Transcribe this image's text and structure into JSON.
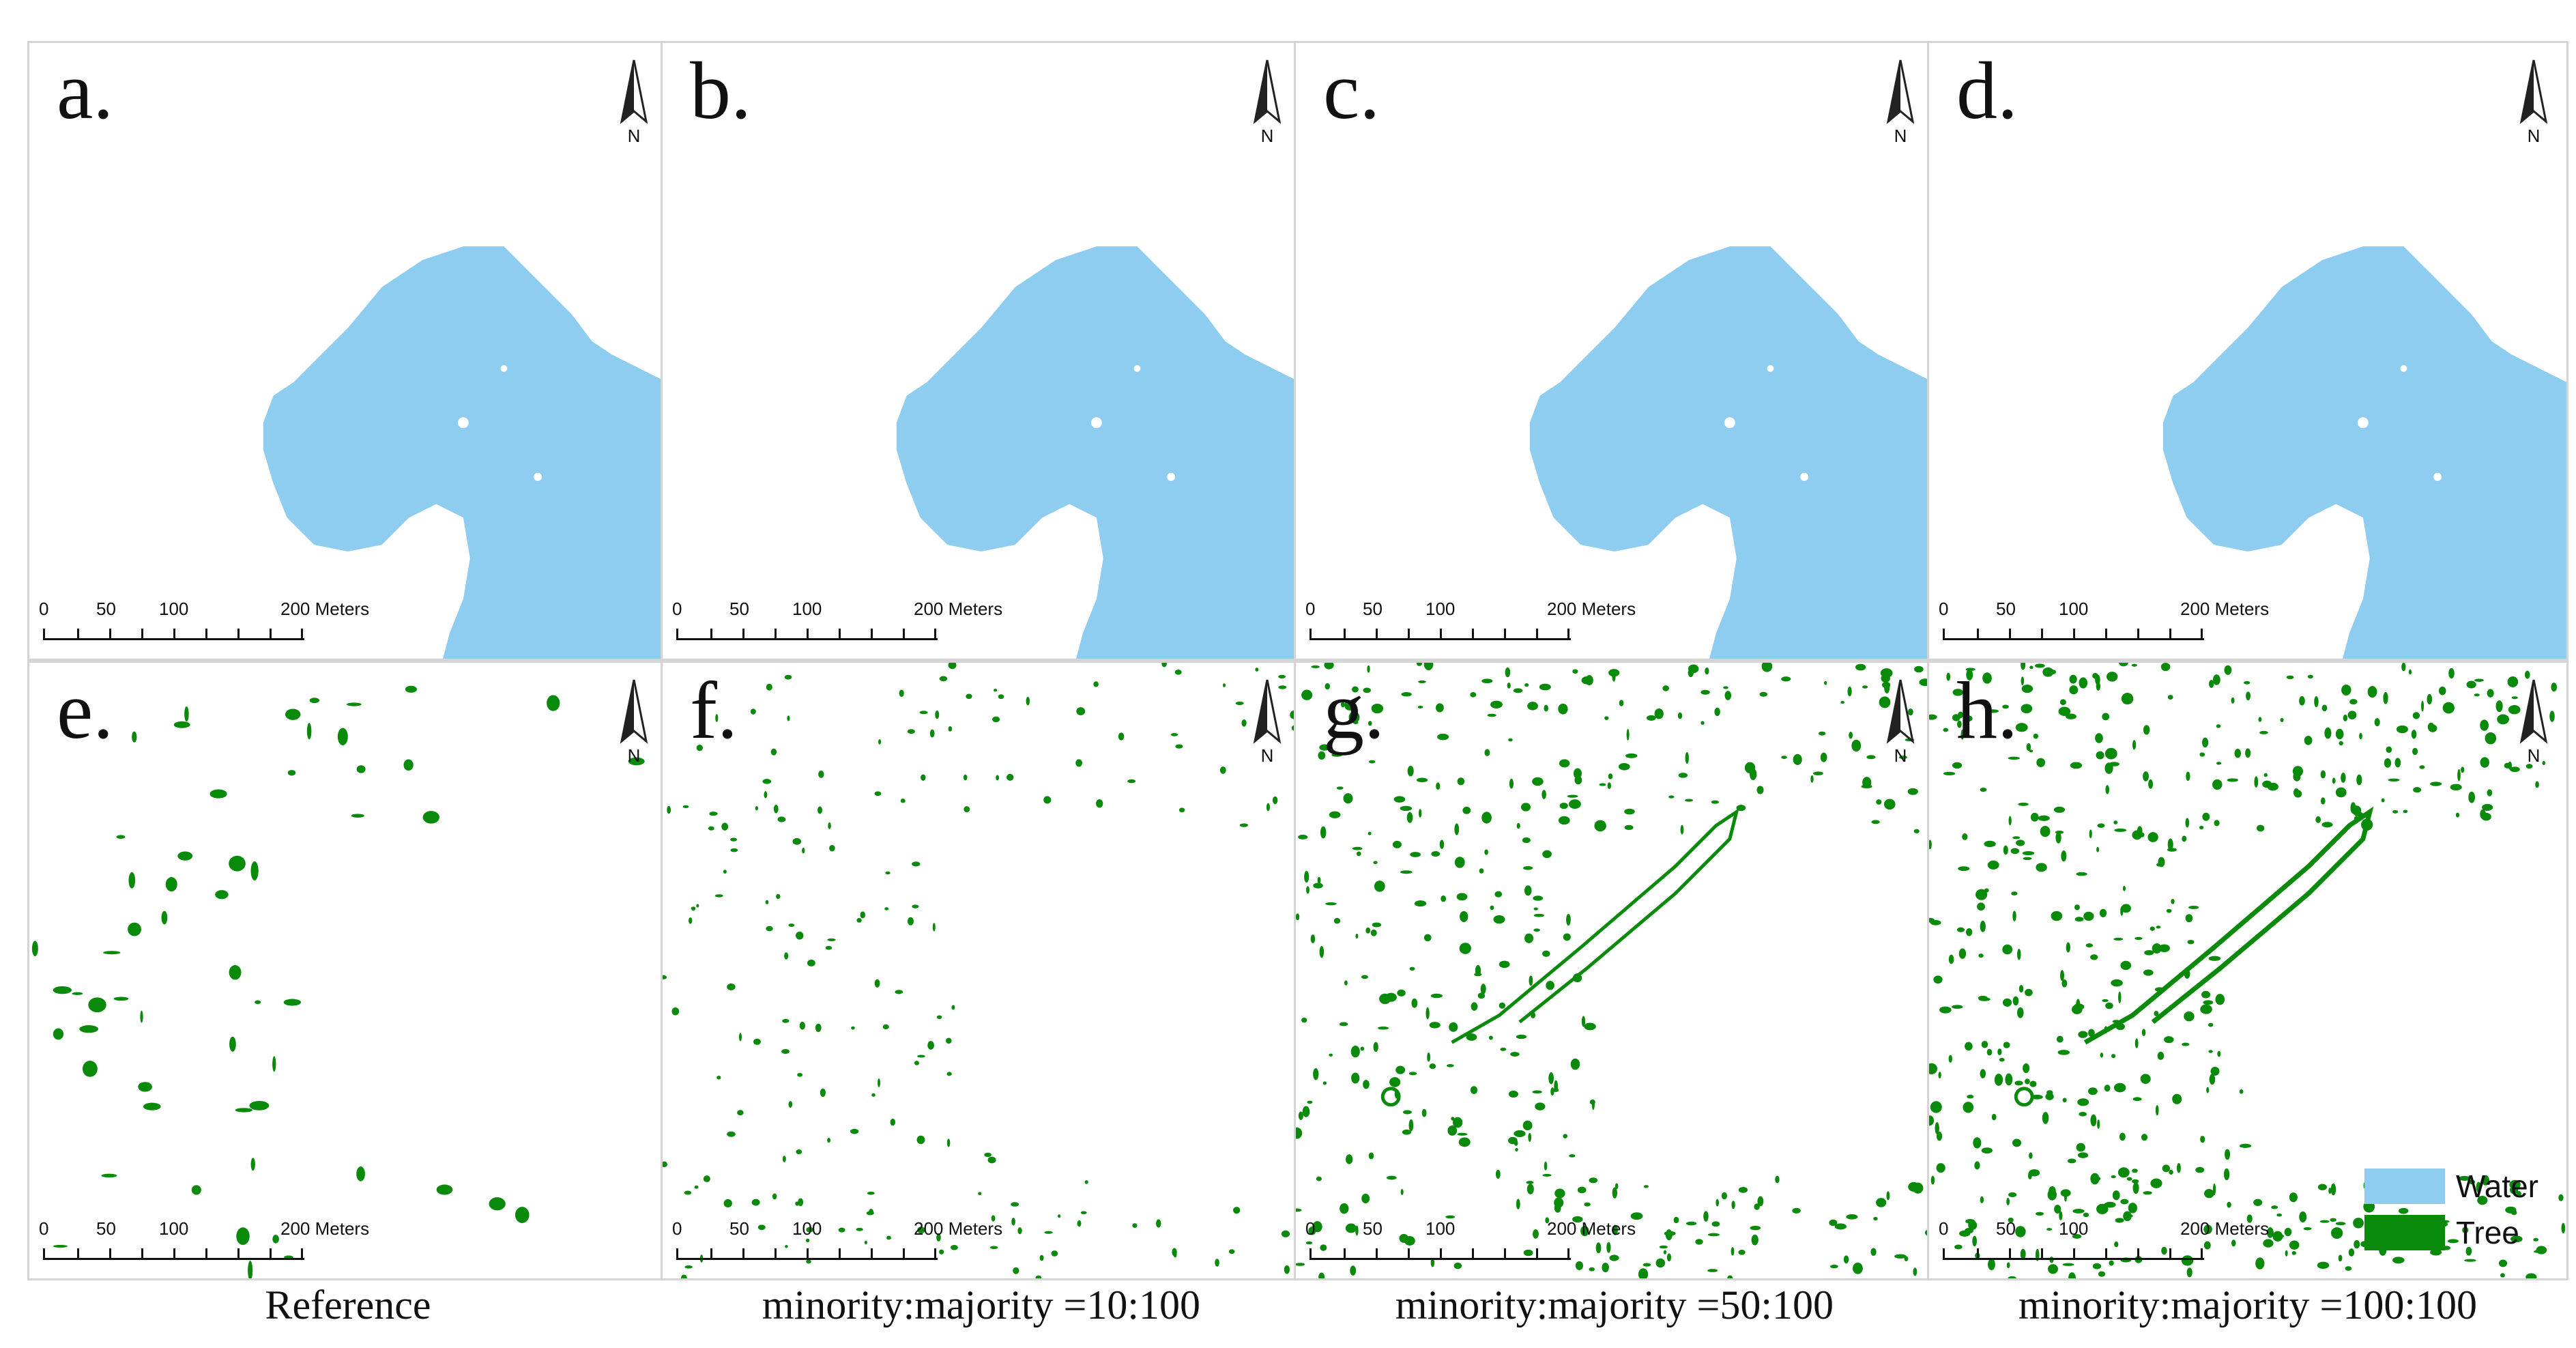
{
  "panels": [
    {
      "id": "a",
      "label": "a.",
      "layer": "water",
      "scale": {
        "ticks": [
          "0",
          "50",
          "100",
          "200 Meters"
        ]
      },
      "north": "N"
    },
    {
      "id": "b",
      "label": "b.",
      "layer": "water",
      "scale": {
        "ticks": [
          "0",
          "50",
          "100",
          "200 Meters"
        ]
      },
      "north": "N"
    },
    {
      "id": "c",
      "label": "c.",
      "layer": "water",
      "scale": {
        "ticks": [
          "0",
          "50",
          "100",
          "200 Meters"
        ]
      },
      "north": "N"
    },
    {
      "id": "d",
      "label": "d.",
      "layer": "water",
      "scale": {
        "ticks": [
          "0",
          "50",
          "100",
          "200 Meters"
        ]
      },
      "north": "N"
    },
    {
      "id": "e",
      "label": "e.",
      "layer": "tree",
      "scale": {
        "ticks": [
          "0",
          "50",
          "100",
          "200 Meters"
        ]
      },
      "north": "N"
    },
    {
      "id": "f",
      "label": "f.",
      "layer": "tree",
      "scale": {
        "ticks": [
          "0",
          "50",
          "100",
          "200 Meters"
        ]
      },
      "north": "N"
    },
    {
      "id": "g",
      "label": "g.",
      "layer": "tree",
      "scale": {
        "ticks": [
          "0",
          "50",
          "100",
          "200 Meters"
        ]
      },
      "north": "N"
    },
    {
      "id": "h",
      "label": "h.",
      "layer": "tree",
      "scale": {
        "ticks": [
          "0",
          "50",
          "100",
          "200 Meters"
        ]
      },
      "north": "N"
    }
  ],
  "captions": [
    "Reference",
    "minority:majority =10:100",
    "minority:majority =50:100",
    "minority:majority =100:100"
  ],
  "legend": [
    {
      "label": "Water",
      "color": "#8ecdef"
    },
    {
      "label": "Tree",
      "color": "#0a8a0a"
    }
  ],
  "colors": {
    "water": "#8ecdef",
    "tree": "#0a8a0a"
  }
}
